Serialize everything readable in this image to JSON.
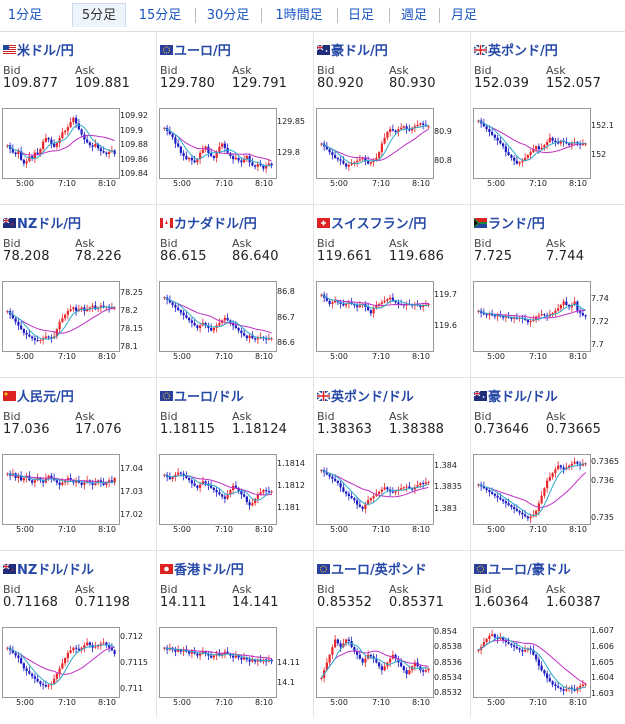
{
  "tabs": [
    "1分足",
    "5分足",
    "15分足",
    "30分足",
    "1時間足",
    "日足",
    "週足",
    "月足"
  ],
  "active_tab": "5分足",
  "labels": {
    "bid": "Bid",
    "ask": "Ask"
  },
  "colors": {
    "up": "#e8262a",
    "down": "#1c1cc4",
    "ma_fast": "#2aa9c9",
    "ma_slow": "#c02fc4",
    "title": "#2548a6"
  },
  "pairs": [
    {
      "name": "米ドル/円",
      "flag": "us-flag-icon",
      "bid": "109.877",
      "ask": "109.881",
      "chart": {
        "yticks": [
          "109.92",
          "109.9",
          "109.88",
          "109.86",
          "109.84"
        ],
        "ymin": 109.835,
        "ymax": 109.93,
        "xticks": [
          "5:00",
          "7:10",
          "8:10"
        ],
        "closes": [
          109.88,
          109.875,
          109.87,
          109.868,
          109.872,
          109.86,
          109.855,
          109.858,
          109.865,
          109.862,
          109.87,
          109.868,
          109.875,
          109.885,
          109.89,
          109.888,
          109.882,
          109.878,
          109.883,
          109.89,
          109.898,
          109.9,
          109.905,
          109.912,
          109.918,
          109.91,
          109.902,
          109.895,
          109.888,
          109.884,
          109.88,
          109.878,
          109.882,
          109.876,
          109.872,
          109.87,
          109.868,
          109.871,
          109.873,
          109.868
        ]
      }
    },
    {
      "name": "ユーロ/円",
      "flag": "eu-flag-icon",
      "bid": "129.780",
      "ask": "129.791",
      "chart": {
        "yticks": [
          "129.85",
          "129.8"
        ],
        "ymin": 129.76,
        "ymax": 129.87,
        "xticks": [
          "5:00",
          "7:10",
          "8:10"
        ],
        "closes": [
          129.84,
          129.835,
          129.83,
          129.825,
          129.815,
          129.81,
          129.8,
          129.795,
          129.79,
          129.792,
          129.788,
          129.785,
          129.79,
          129.8,
          129.805,
          129.81,
          129.8,
          129.795,
          129.792,
          129.8,
          129.81,
          129.815,
          129.808,
          129.8,
          129.795,
          129.79,
          129.792,
          129.788,
          129.785,
          129.79,
          129.795,
          129.785,
          129.78,
          129.778,
          129.782,
          129.78,
          129.775,
          129.78,
          129.783,
          129.78
        ]
      }
    },
    {
      "name": "豪ドル/円",
      "flag": "au-flag-icon",
      "bid": "80.920",
      "ask": "80.930",
      "chart": {
        "yticks": [
          "80.9",
          "80.8"
        ],
        "ymin": 80.74,
        "ymax": 80.98,
        "xticks": [
          "5:00",
          "7:10",
          "8:10"
        ],
        "closes": [
          80.86,
          80.85,
          80.84,
          80.83,
          80.82,
          80.81,
          80.805,
          80.8,
          80.79,
          80.78,
          80.785,
          80.79,
          80.795,
          80.8,
          80.805,
          80.81,
          80.8,
          80.79,
          80.795,
          80.8,
          80.81,
          80.83,
          80.86,
          80.88,
          80.9,
          80.91,
          80.905,
          80.9,
          80.91,
          80.915,
          80.92,
          80.91,
          80.905,
          80.915,
          80.92,
          80.925,
          80.93,
          80.925,
          80.92,
          80.92
        ]
      }
    },
    {
      "name": "英ポンド/円",
      "flag": "uk-flag-icon",
      "bid": "152.039",
      "ask": "152.057",
      "chart": {
        "yticks": [
          "152.1",
          "152"
        ],
        "ymin": 151.92,
        "ymax": 152.16,
        "xticks": [
          "5:00",
          "7:10",
          "8:10"
        ],
        "closes": [
          152.12,
          152.11,
          152.1,
          152.09,
          152.08,
          152.07,
          152.06,
          152.05,
          152.04,
          152.03,
          152.01,
          152.0,
          151.99,
          151.98,
          151.97,
          151.975,
          151.98,
          151.99,
          152.0,
          152.01,
          152.02,
          152.03,
          152.02,
          152.025,
          152.035,
          152.045,
          152.06,
          152.05,
          152.045,
          152.04,
          152.05,
          152.045,
          152.04,
          152.035,
          152.04,
          152.045,
          152.04,
          152.035,
          152.04,
          152.04
        ]
      }
    },
    {
      "name": "NZドル/円",
      "flag": "nz-flag-icon",
      "bid": "78.208",
      "ask": "78.226",
      "chart": {
        "yticks": [
          "78.25",
          "78.2",
          "78.15",
          "78.1"
        ],
        "ymin": 78.09,
        "ymax": 78.28,
        "xticks": [
          "5:00",
          "7:10",
          "8:10"
        ],
        "closes": [
          78.2,
          78.19,
          78.18,
          78.17,
          78.16,
          78.15,
          78.14,
          78.135,
          78.13,
          78.125,
          78.12,
          78.118,
          78.12,
          78.125,
          78.13,
          78.128,
          78.125,
          78.13,
          78.15,
          78.17,
          78.18,
          78.19,
          78.2,
          78.205,
          78.21,
          78.2,
          78.205,
          78.21,
          78.2,
          78.205,
          78.21,
          78.215,
          78.205,
          78.21,
          78.215,
          78.21,
          78.212,
          78.208,
          78.21,
          78.21
        ]
      }
    },
    {
      "name": "カナダドル/円",
      "flag": "ca-flag-icon",
      "bid": "86.615",
      "ask": "86.640",
      "chart": {
        "yticks": [
          "86.8",
          "86.7",
          "86.6"
        ],
        "ymin": 86.57,
        "ymax": 86.84,
        "xticks": [
          "5:00",
          "7:10",
          "8:10"
        ],
        "closes": [
          86.78,
          86.77,
          86.76,
          86.75,
          86.74,
          86.73,
          86.72,
          86.71,
          86.7,
          86.69,
          86.68,
          86.67,
          86.66,
          86.67,
          86.68,
          86.67,
          86.66,
          86.65,
          86.66,
          86.67,
          86.68,
          86.69,
          86.7,
          86.69,
          86.68,
          86.67,
          86.66,
          86.65,
          86.64,
          86.63,
          86.62,
          86.63,
          86.62,
          86.615,
          86.62,
          86.625,
          86.62,
          86.615,
          86.62,
          86.62
        ]
      }
    },
    {
      "name": "スイスフラン/円",
      "flag": "ch-flag-icon",
      "bid": "119.661",
      "ask": "119.686",
      "chart": {
        "yticks": [
          "119.7",
          "119.6"
        ],
        "ymin": 119.52,
        "ymax": 119.74,
        "xticks": [
          "5:00",
          "7:10",
          "8:10"
        ],
        "closes": [
          119.7,
          119.69,
          119.68,
          119.67,
          119.675,
          119.68,
          119.675,
          119.67,
          119.665,
          119.67,
          119.675,
          119.67,
          119.665,
          119.66,
          119.665,
          119.67,
          119.66,
          119.65,
          119.64,
          119.655,
          119.665,
          119.67,
          119.675,
          119.68,
          119.685,
          119.69,
          119.68,
          119.675,
          119.67,
          119.668,
          119.665,
          119.67,
          119.668,
          119.665,
          119.668,
          119.665,
          119.66,
          119.665,
          119.668,
          119.67
        ]
      }
    },
    {
      "name": "ランド/円",
      "flag": "za-flag-icon",
      "bid": "7.725",
      "ask": "7.744",
      "chart": {
        "yticks": [
          "7.74",
          "7.72",
          "7.7"
        ],
        "ymin": 7.695,
        "ymax": 7.755,
        "xticks": [
          "5:00",
          "7:10",
          "8:10"
        ],
        "closes": [
          7.73,
          7.728,
          7.727,
          7.726,
          7.727,
          7.726,
          7.725,
          7.726,
          7.725,
          7.724,
          7.725,
          7.724,
          7.723,
          7.724,
          7.723,
          7.724,
          7.723,
          7.722,
          7.72,
          7.721,
          7.722,
          7.725,
          7.726,
          7.727,
          7.726,
          7.725,
          7.727,
          7.728,
          7.73,
          7.732,
          7.735,
          7.738,
          7.735,
          7.733,
          7.735,
          7.738,
          7.73,
          7.728,
          7.726,
          7.725
        ]
      }
    },
    {
      "name": "人民元/円",
      "flag": "cn-flag-icon",
      "bid": "17.036",
      "ask": "17.076",
      "chart": {
        "yticks": [
          "17.04",
          "17.03",
          "17.02"
        ],
        "ymin": 17.016,
        "ymax": 17.046,
        "xticks": [
          "5:00",
          "7:10",
          "8:10"
        ],
        "closes": [
          17.038,
          17.037,
          17.038,
          17.036,
          17.037,
          17.035,
          17.036,
          17.037,
          17.035,
          17.034,
          17.035,
          17.036,
          17.035,
          17.034,
          17.036,
          17.037,
          17.036,
          17.035,
          17.034,
          17.033,
          17.034,
          17.035,
          17.036,
          17.035,
          17.034,
          17.035,
          17.034,
          17.033,
          17.034,
          17.035,
          17.034,
          17.033,
          17.034,
          17.035,
          17.034,
          17.033,
          17.034,
          17.035,
          17.034,
          17.036
        ]
      }
    },
    {
      "name": "ユーロ/ドル",
      "flag": "eu-flag-icon",
      "bid": "1.18115",
      "ask": "1.18124",
      "chart": {
        "yticks": [
          "1.1814",
          "1.1812",
          "1.181"
        ],
        "ymin": 1.18085,
        "ymax": 1.18148,
        "xticks": [
          "5:00",
          "7:10",
          "8:10"
        ],
        "closes": [
          1.1813,
          1.18128,
          1.18126,
          1.18128,
          1.1813,
          1.18132,
          1.18131,
          1.18129,
          1.18127,
          1.18125,
          1.18122,
          1.1812,
          1.18118,
          1.18121,
          1.18124,
          1.18122,
          1.1812,
          1.18118,
          1.18116,
          1.18114,
          1.18112,
          1.1811,
          1.18108,
          1.18112,
          1.18116,
          1.1812,
          1.18118,
          1.18115,
          1.18112,
          1.1811,
          1.18105,
          1.18102,
          1.18104,
          1.18108,
          1.18112,
          1.18114,
          1.18116,
          1.18115,
          1.18114,
          1.18115
        ]
      }
    },
    {
      "name": "英ポンド/ドル",
      "flag": "uk-flag-icon",
      "bid": "1.38363",
      "ask": "1.38388",
      "chart": {
        "yticks": [
          "1.384",
          "1.3835",
          "1.383"
        ],
        "ymin": 1.38265,
        "ymax": 1.38425,
        "xticks": [
          "5:00",
          "7:10",
          "8:10"
        ],
        "closes": [
          1.3839,
          1.38385,
          1.3838,
          1.38375,
          1.3837,
          1.38365,
          1.3836,
          1.3835,
          1.3834,
          1.38335,
          1.3833,
          1.38325,
          1.3832,
          1.3831,
          1.38305,
          1.383,
          1.3831,
          1.3832,
          1.38325,
          1.3833,
          1.38335,
          1.3834,
          1.38345,
          1.3835,
          1.38345,
          1.3834,
          1.38338,
          1.38342,
          1.38345,
          1.38348,
          1.3835,
          1.38352,
          1.38348,
          1.38345,
          1.3835,
          1.38355,
          1.3836,
          1.38358,
          1.38362,
          1.38363
        ]
      }
    },
    {
      "name": "豪ドル/ドル",
      "flag": "au-flag-icon",
      "bid": "0.73646",
      "ask": "0.73665",
      "chart": {
        "yticks": [
          "0.7365",
          "0.736",
          "0.735"
        ],
        "ymin": 0.73485,
        "ymax": 0.73668,
        "xticks": [
          "5:00",
          "7:10",
          "8:10"
        ],
        "closes": [
          0.7359,
          0.73585,
          0.7358,
          0.73575,
          0.7357,
          0.73565,
          0.7356,
          0.73555,
          0.7355,
          0.73545,
          0.7354,
          0.73535,
          0.7353,
          0.73525,
          0.7352,
          0.73515,
          0.7351,
          0.73505,
          0.735,
          0.73505,
          0.7351,
          0.7352,
          0.7354,
          0.7356,
          0.7358,
          0.736,
          0.7361,
          0.7362,
          0.7363,
          0.7364,
          0.73635,
          0.7363,
          0.73635,
          0.7364,
          0.73645,
          0.7365,
          0.73645,
          0.7364,
          0.73645,
          0.73646
        ]
      }
    },
    {
      "name": "NZドル/ドル",
      "flag": "nz-flag-icon",
      "bid": "0.71168",
      "ask": "0.71198",
      "chart": {
        "yticks": [
          "0.712",
          "0.7115",
          "0.711"
        ],
        "ymin": 0.71085,
        "ymax": 0.71218,
        "xticks": [
          "5:00",
          "7:10",
          "8:10"
        ],
        "closes": [
          0.7118,
          0.71175,
          0.7117,
          0.71165,
          0.7116,
          0.7115,
          0.7114,
          0.71135,
          0.7113,
          0.71125,
          0.7112,
          0.71115,
          0.7111,
          0.71108,
          0.71105,
          0.71108,
          0.7111,
          0.7112,
          0.7113,
          0.7114,
          0.7115,
          0.7116,
          0.7117,
          0.71175,
          0.7118,
          0.71178,
          0.71175,
          0.7118,
          0.71185,
          0.7119,
          0.71185,
          0.7118,
          0.71182,
          0.71185,
          0.71188,
          0.7119,
          0.71185,
          0.7118,
          0.71175,
          0.71168
        ]
      }
    },
    {
      "name": "香港ドル/円",
      "flag": "hk-flag-icon",
      "bid": "14.111",
      "ask": "14.141",
      "chart": {
        "yticks": [
          "14.11",
          "14.1"
        ],
        "ymin": 14.093,
        "ymax": 14.128,
        "xticks": [
          "5:00",
          "7:10",
          "8:10"
        ],
        "closes": [
          14.118,
          14.117,
          14.118,
          14.117,
          14.116,
          14.117,
          14.116,
          14.117,
          14.116,
          14.115,
          14.116,
          14.115,
          14.114,
          14.115,
          14.116,
          14.115,
          14.114,
          14.113,
          14.114,
          14.115,
          14.114,
          14.115,
          14.116,
          14.115,
          14.114,
          14.113,
          14.114,
          14.113,
          14.112,
          14.113,
          14.112,
          14.111,
          14.112,
          14.111,
          14.112,
          14.111,
          14.112,
          14.111,
          14.112,
          14.111
        ]
      }
    },
    {
      "name": "ユーロ/英ポンド",
      "flag": "eu-uk-flag-icon",
      "bid": "0.85352",
      "ask": "0.85371",
      "chart": {
        "yticks": [
          "0.854",
          "0.8538",
          "0.8536",
          "0.8534",
          "0.8532"
        ],
        "ymin": 0.85315,
        "ymax": 0.85405,
        "xticks": [
          "5:00",
          "7:10",
          "8:10"
        ],
        "closes": [
          0.8534,
          0.8535,
          0.8536,
          0.8537,
          0.8538,
          0.8539,
          0.85385,
          0.8538,
          0.85385,
          0.8539,
          0.85388,
          0.8538,
          0.85375,
          0.8537,
          0.85365,
          0.8536,
          0.85365,
          0.8537,
          0.85368,
          0.85365,
          0.8536,
          0.85355,
          0.8535,
          0.85355,
          0.8536,
          0.85365,
          0.8537,
          0.85365,
          0.8536,
          0.85355,
          0.8535,
          0.85345,
          0.8535,
          0.85355,
          0.8536,
          0.85355,
          0.8535,
          0.85348,
          0.8535,
          0.85352
        ]
      }
    },
    {
      "name": "ユーロ/豪ドル",
      "flag": "eu-au-flag-icon",
      "bid": "1.60364",
      "ask": "1.60387",
      "chart": {
        "yticks": [
          "1.607",
          "1.606",
          "1.605",
          "1.604",
          "1.603"
        ],
        "ymin": 1.6028,
        "ymax": 1.6072,
        "xticks": [
          "5:00",
          "7:10",
          "8:10"
        ],
        "closes": [
          1.6058,
          1.606,
          1.6063,
          1.6065,
          1.6067,
          1.6068,
          1.6066,
          1.6065,
          1.6066,
          1.6064,
          1.6063,
          1.6062,
          1.6061,
          1.606,
          1.6059,
          1.6058,
          1.6057,
          1.6058,
          1.6059,
          1.6058,
          1.6055,
          1.6052,
          1.6048,
          1.6045,
          1.6043,
          1.604,
          1.6038,
          1.6036,
          1.6035,
          1.6034,
          1.6033,
          1.6032,
          1.6033,
          1.6034,
          1.6033,
          1.6032,
          1.6034,
          1.6035,
          1.6036,
          1.60364
        ]
      }
    }
  ]
}
